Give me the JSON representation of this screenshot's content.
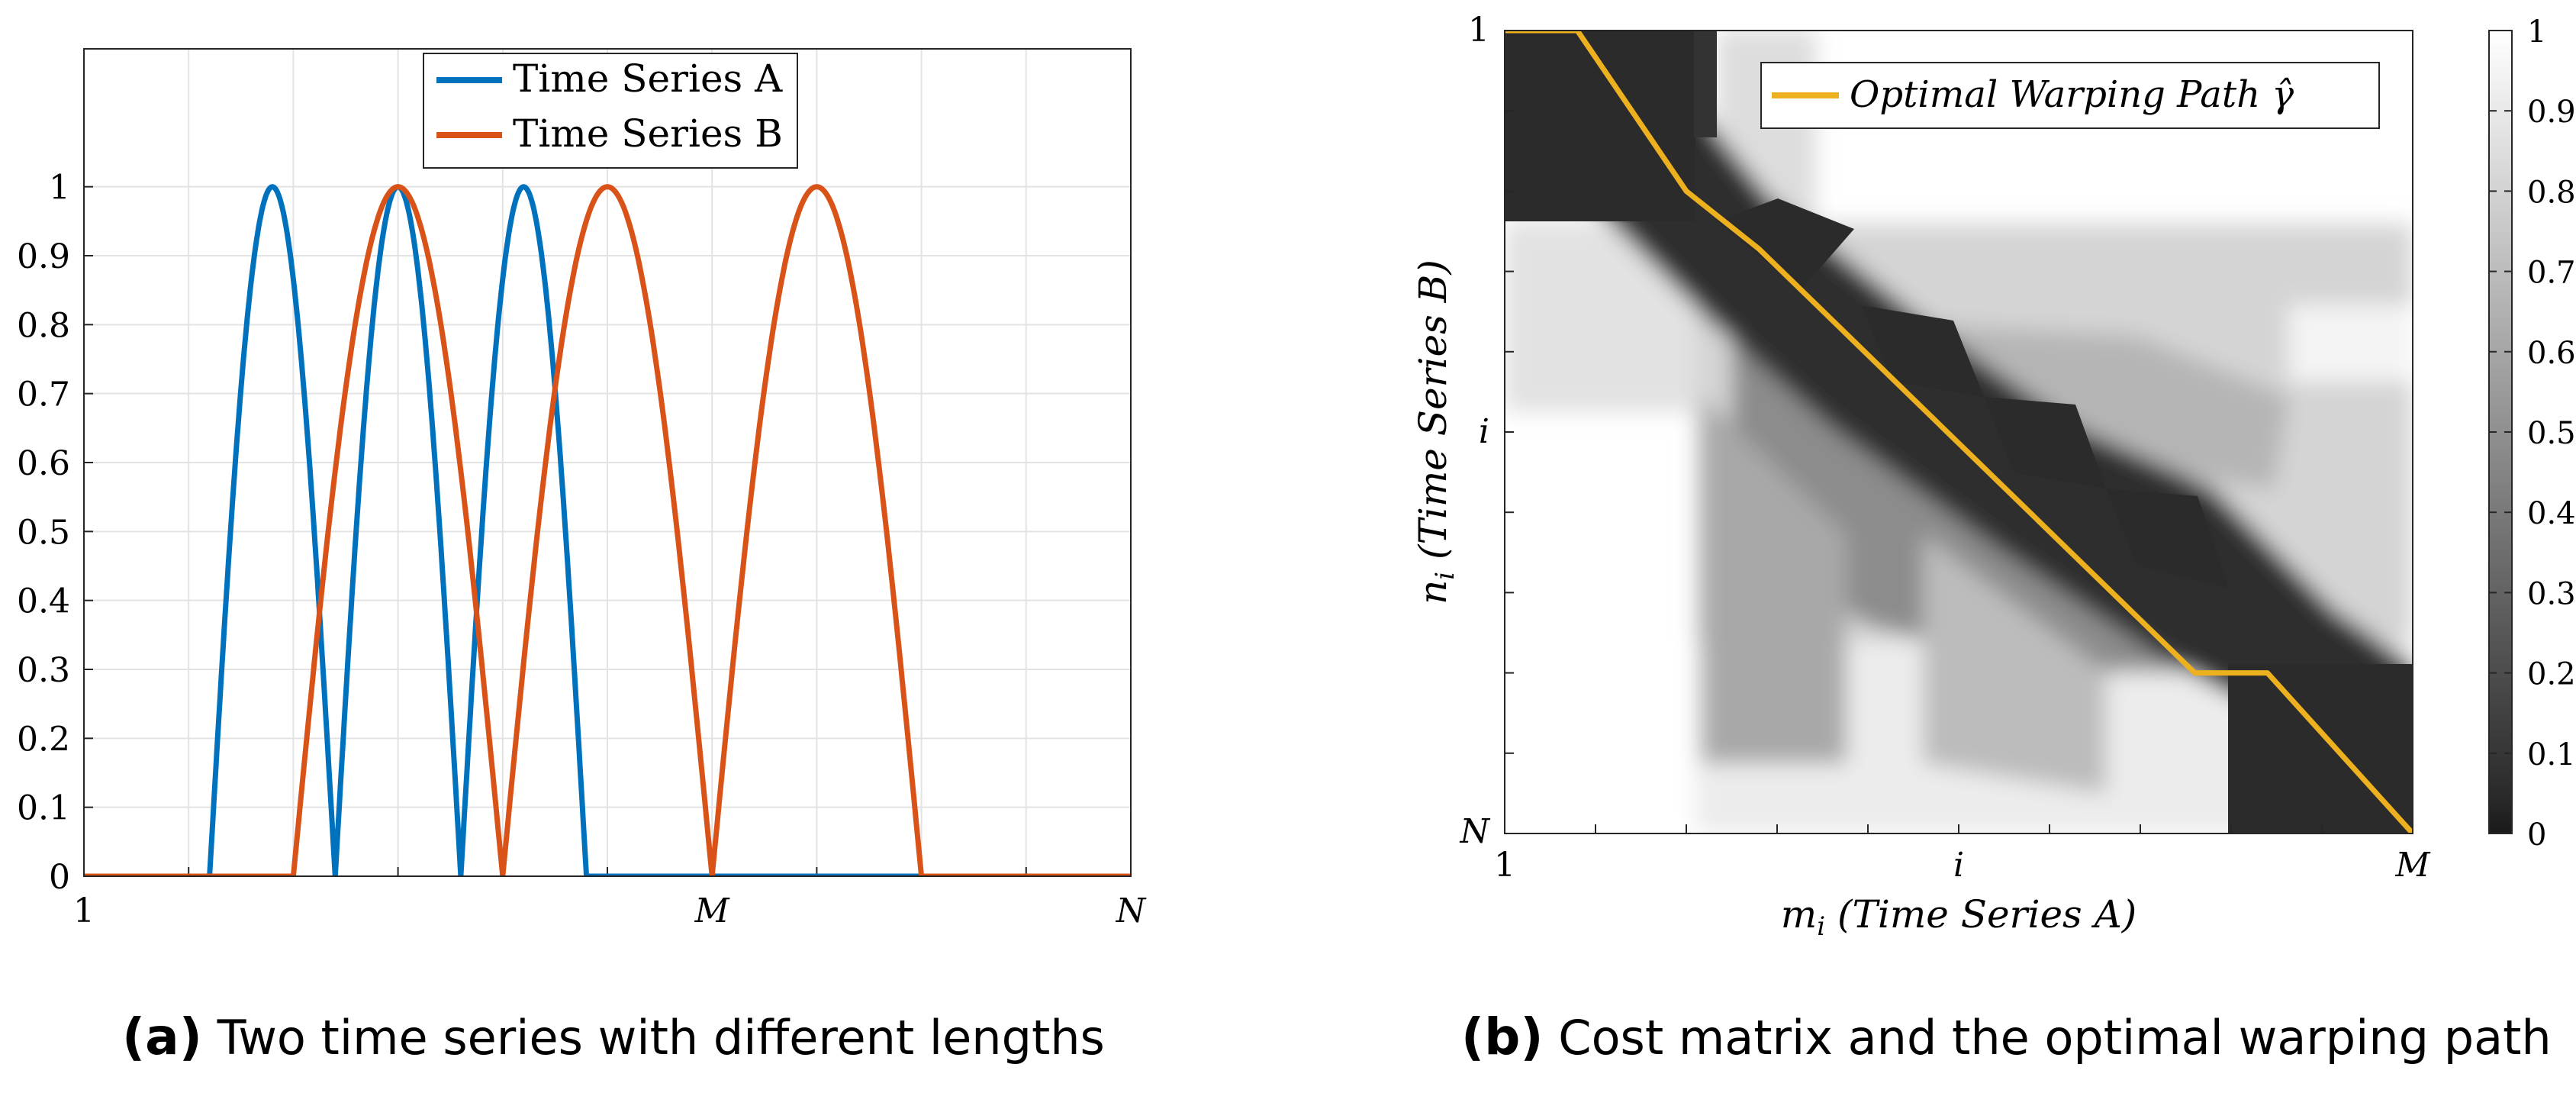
{
  "chart_data": [
    {
      "type": "line",
      "panel_label": "(a)",
      "caption": "Two time series with different lengths",
      "xlim": [
        0,
        1
      ],
      "ylim": [
        0,
        1.2
      ],
      "yticks": [
        0,
        0.1,
        0.2,
        0.3,
        0.4,
        0.5,
        0.6,
        0.7,
        0.8,
        0.9,
        1
      ],
      "yticklabels": [
        "0",
        "0.1",
        "0.2",
        "0.3",
        "0.4",
        "0.5",
        "0.6",
        "0.7",
        "0.8",
        "0.9",
        "1"
      ],
      "xticks": [
        0,
        0.6,
        1
      ],
      "xticklabels": [
        "1",
        "M",
        "N"
      ],
      "grid": true,
      "legend_position": "top-center",
      "series": [
        {
          "name": "Time Series A",
          "color": "#0072BD",
          "arches": [
            [
              0.12,
              0.24
            ],
            [
              0.24,
              0.36
            ],
            [
              0.36,
              0.48
            ]
          ]
        },
        {
          "name": "Time Series B",
          "color": "#D95319",
          "arches": [
            [
              0.2,
              0.4
            ],
            [
              0.4,
              0.6
            ],
            [
              0.6,
              0.8
            ]
          ]
        }
      ]
    },
    {
      "type": "heatmap",
      "panel_label": "(b)",
      "caption": "Cost matrix and the optimal warping path",
      "xlabel": "m_i (Time Series A)",
      "ylabel": "n_i (Time Series B)",
      "xticklabels": [
        "1",
        "i",
        "M"
      ],
      "yticklabels": [
        "1",
        "i",
        "N"
      ],
      "colormap": "gray",
      "colorbar_ticks": [
        0,
        0.1,
        0.2,
        0.3,
        0.4,
        0.5,
        0.6,
        0.7,
        0.8,
        0.9,
        1
      ],
      "colorbar_ticklabels": [
        "0",
        "0.1",
        "0.2",
        "0.3",
        "0.4",
        "0.5",
        "0.6",
        "0.7",
        "0.8",
        "0.9",
        "1"
      ],
      "legend_position": "top-right",
      "path_label": "Optimal Warping Path γ̂",
      "path_color": "#EDB120",
      "warping_path": [
        [
          0,
          0
        ],
        [
          0.08,
          0
        ],
        [
          0.2,
          0.2
        ],
        [
          0.28,
          0.272
        ],
        [
          0.76,
          0.8
        ],
        [
          0.84,
          0.8
        ],
        [
          1,
          1
        ]
      ]
    }
  ],
  "captions": {
    "a_label": "(a)",
    "a_text": "Two time series with different lengths",
    "b_label": "(b)",
    "b_text": "Cost matrix and the optimal warping path"
  },
  "axes_text": {
    "xlabel_b": "m_i (Time Series A)",
    "ylabel_b": "n_i (Time Series B)"
  }
}
